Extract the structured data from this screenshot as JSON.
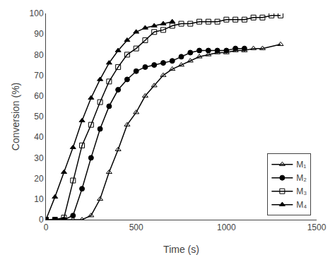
{
  "chart_data": {
    "type": "line",
    "title": "",
    "xlabel": "Time (s)",
    "ylabel": "Conversion (%)",
    "xlim": [
      0,
      1500
    ],
    "ylim": [
      0,
      100
    ],
    "xticks": [
      0,
      500,
      1000,
      1500
    ],
    "yticks": [
      0,
      10,
      20,
      30,
      40,
      50,
      60,
      70,
      80,
      90,
      100
    ],
    "grid": false,
    "legend": "lower right",
    "series": [
      {
        "name": "M₁",
        "color": "black",
        "marker": "triangle-up-open",
        "x": [
          0,
          50,
          100,
          150,
          200,
          250,
          300,
          350,
          400,
          450,
          500,
          550,
          600,
          650,
          700,
          750,
          800,
          850,
          900,
          950,
          1000,
          1050,
          1100,
          1150,
          1200,
          1300
        ],
        "values": [
          0,
          0,
          0,
          0,
          0,
          2,
          10,
          23,
          34,
          46,
          52,
          60,
          65,
          70,
          73,
          75,
          77,
          79,
          80,
          81,
          81,
          82,
          82,
          83,
          83,
          85
        ]
      },
      {
        "name": "M₂",
        "color": "black",
        "marker": "circle",
        "x": [
          0,
          50,
          100,
          150,
          200,
          250,
          300,
          350,
          400,
          450,
          500,
          550,
          600,
          650,
          700,
          750,
          800,
          850,
          900,
          950,
          1000,
          1050,
          1100
        ],
        "values": [
          0,
          0,
          0,
          2,
          15,
          30,
          44,
          55,
          63,
          68,
          72,
          74,
          75,
          76,
          77,
          79,
          81,
          82,
          82,
          82,
          82,
          83,
          83
        ]
      },
      {
        "name": "M₃",
        "color": "black",
        "marker": "square-open",
        "x": [
          0,
          50,
          100,
          150,
          200,
          250,
          300,
          350,
          400,
          450,
          500,
          550,
          600,
          650,
          700,
          750,
          800,
          850,
          900,
          950,
          1000,
          1050,
          1100,
          1150,
          1200,
          1250,
          1300
        ],
        "values": [
          0,
          0,
          1,
          19,
          36,
          46,
          57,
          67,
          74,
          80,
          83,
          87,
          91,
          92,
          94,
          95,
          95,
          96,
          96,
          96,
          97,
          97,
          97,
          98,
          98,
          99,
          99
        ]
      },
      {
        "name": "M₄",
        "color": "black",
        "marker": "triangle-up",
        "x": [
          0,
          50,
          100,
          150,
          200,
          250,
          300,
          350,
          400,
          450,
          500,
          550,
          600,
          650,
          700
        ],
        "values": [
          0,
          11,
          23,
          35,
          48,
          59,
          68,
          76,
          82,
          87,
          91,
          93,
          94,
          95,
          96
        ]
      }
    ]
  }
}
